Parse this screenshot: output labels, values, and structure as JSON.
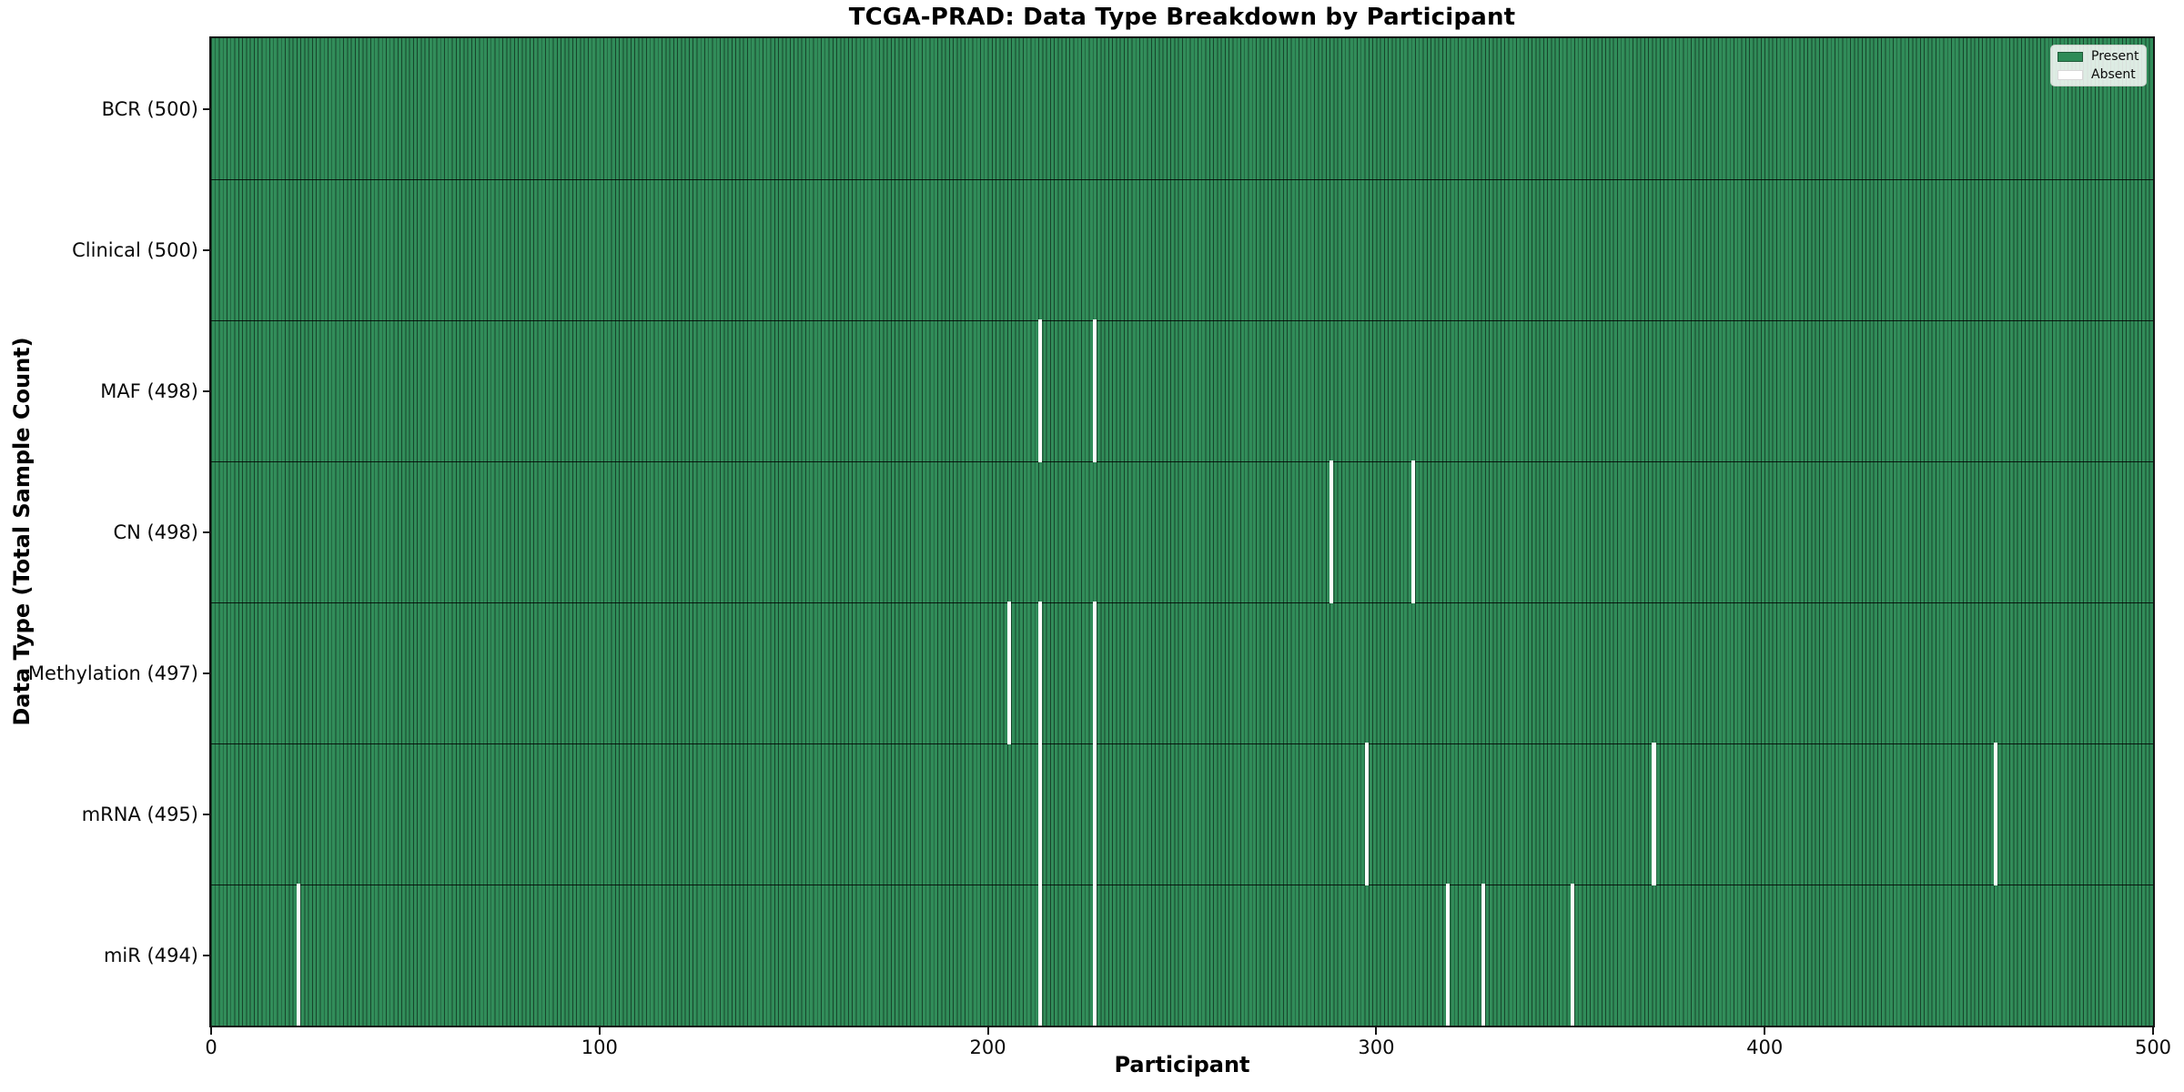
{
  "title": "TCGA-PRAD: Data Type Breakdown by Participant",
  "axes": {
    "x_label": "Participant",
    "y_label": "Data Type (Total Sample Count)"
  },
  "legend": {
    "items": [
      {
        "label": "Present",
        "color": "#2e8b57"
      },
      {
        "label": "Absent",
        "color": "#ffffff"
      }
    ],
    "position": "upper right"
  },
  "chart_data": {
    "type": "heatmap",
    "title": "TCGA-PRAD: Data Type Breakdown by Participant",
    "xlabel": "Participant",
    "ylabel": "Data Type (Total Sample Count)",
    "x_range": [
      0,
      500
    ],
    "n_participants": 500,
    "x_tick_values": [
      0,
      100,
      200,
      300,
      400,
      500
    ],
    "grid": false,
    "legend_position": "upper right",
    "colors": {
      "present": "#2e8b57",
      "absent": "#ffffff",
      "bar_edge": "rgba(0,0,0,0.5)"
    },
    "rows": [
      {
        "label": "BCR (500)",
        "data_type": "BCR",
        "total": 500,
        "absent_participants": []
      },
      {
        "label": "Clinical (500)",
        "data_type": "Clinical",
        "total": 500,
        "absent_participants": []
      },
      {
        "label": "MAF (498)",
        "data_type": "MAF",
        "total": 498,
        "absent_participants": [
          213,
          227
        ]
      },
      {
        "label": "CN (498)",
        "data_type": "CN",
        "total": 498,
        "absent_participants": [
          288,
          309
        ]
      },
      {
        "label": "Methylation (497)",
        "data_type": "Methylation",
        "total": 497,
        "absent_participants": [
          205,
          213,
          227
        ]
      },
      {
        "label": "mRNA (495)",
        "data_type": "mRNA",
        "total": 495,
        "absent_participants": [
          213,
          227,
          297,
          371,
          459
        ]
      },
      {
        "label": "miR (494)",
        "data_type": "miR",
        "total": 494,
        "absent_participants": [
          22,
          213,
          227,
          318,
          327,
          350
        ]
      }
    ]
  }
}
